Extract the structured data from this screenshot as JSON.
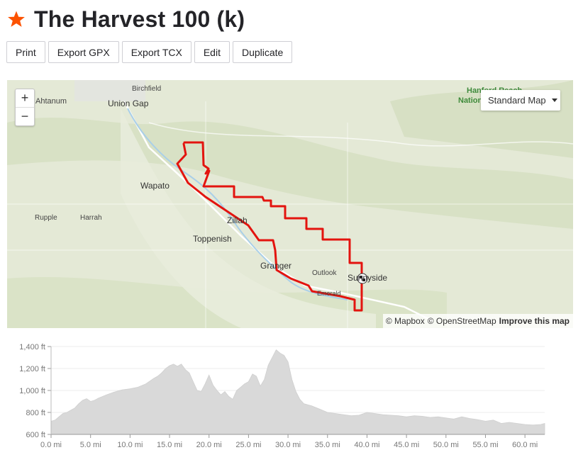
{
  "route": {
    "title": "The Harvest 100 (k)",
    "star_color": "#fc5200"
  },
  "toolbar": {
    "print": "Print",
    "export_gpx": "Export GPX",
    "export_tcx": "Export TCX",
    "edit": "Edit",
    "duplicate": "Duplicate"
  },
  "map": {
    "zoom_in": "+",
    "zoom_out": "−",
    "style": "Standard Map",
    "attribution": {
      "mapbox": "© Mapbox",
      "osm": "© OpenStreetMap",
      "improve": "Improve this map"
    },
    "route_color": "#e3140f",
    "labels": {
      "ahtanum": "Ahtanum",
      "birchfield": "Birchfield",
      "union_gap": "Union Gap",
      "hanford_1": "Hanford Reach",
      "hanford_2": "Nation",
      "wapato": "Wapato",
      "rupple": "Rupple",
      "harrah": "Harrah",
      "zillah": "Zillah",
      "toppenish": "Toppenish",
      "granger": "Granger",
      "outlook": "Outlook",
      "sunnyside": "Sunnyside",
      "emerald": "Emerald"
    }
  },
  "chart_data": {
    "type": "area",
    "ylabel_unit": "ft",
    "x_unit": "mi",
    "xlim": [
      0,
      62.5
    ],
    "ylim": [
      600,
      1400
    ],
    "y_ticks": [
      600,
      800,
      1000,
      1200,
      1400
    ],
    "y_tick_labels": [
      "600 ft",
      "800 ft",
      "1,000 ft",
      "1,200 ft",
      "1,400 ft"
    ],
    "x_ticks": [
      0,
      5,
      10,
      15,
      20,
      25,
      30,
      35,
      40,
      45,
      50,
      55,
      60
    ],
    "x_tick_labels": [
      "0.0 mi",
      "5.0 mi",
      "10.0 mi",
      "15.0 mi",
      "20.0 mi",
      "25.0 mi",
      "30.0 mi",
      "35.0 mi",
      "40.0 mi",
      "45.0 mi",
      "50.0 mi",
      "55.0 mi",
      "60.0 mi"
    ],
    "fill_color": "#d9d9d9",
    "x": [
      0,
      0.5,
      1,
      1.5,
      2,
      2.5,
      3,
      3.5,
      4,
      4.5,
      5,
      5.5,
      6,
      7,
      8,
      9,
      10,
      11,
      12,
      12.5,
      13,
      13.5,
      14,
      14.5,
      15,
      15.5,
      16,
      16.5,
      17,
      17.5,
      18,
      18.5,
      19,
      19.5,
      20,
      20.5,
      21,
      21.5,
      22,
      22.5,
      23,
      23.5,
      24,
      24.5,
      25,
      25.5,
      26,
      26.5,
      27,
      27.5,
      28,
      28.5,
      29,
      29.5,
      30,
      30.5,
      31,
      31.5,
      32,
      33,
      34,
      35,
      36,
      37,
      38,
      39,
      40,
      41,
      42,
      43,
      44,
      45,
      46,
      47,
      48,
      49,
      50,
      51,
      52,
      53,
      54,
      55,
      56,
      57,
      58,
      59,
      60,
      61,
      62,
      62.5
    ],
    "elevation": [
      720,
      730,
      760,
      790,
      800,
      820,
      840,
      880,
      910,
      925,
      900,
      910,
      930,
      960,
      985,
      1005,
      1015,
      1030,
      1060,
      1085,
      1110,
      1130,
      1160,
      1200,
      1225,
      1240,
      1220,
      1240,
      1190,
      1160,
      1080,
      1000,
      990,
      1060,
      1140,
      1050,
      1000,
      960,
      990,
      945,
      920,
      1000,
      1030,
      1060,
      1080,
      1150,
      1130,
      1040,
      1100,
      1230,
      1300,
      1370,
      1340,
      1320,
      1260,
      1100,
      990,
      920,
      880,
      860,
      830,
      800,
      790,
      780,
      770,
      775,
      800,
      790,
      780,
      775,
      770,
      760,
      770,
      765,
      755,
      760,
      750,
      740,
      760,
      745,
      735,
      720,
      730,
      700,
      710,
      700,
      690,
      685,
      690,
      700,
      730,
      720
    ]
  }
}
